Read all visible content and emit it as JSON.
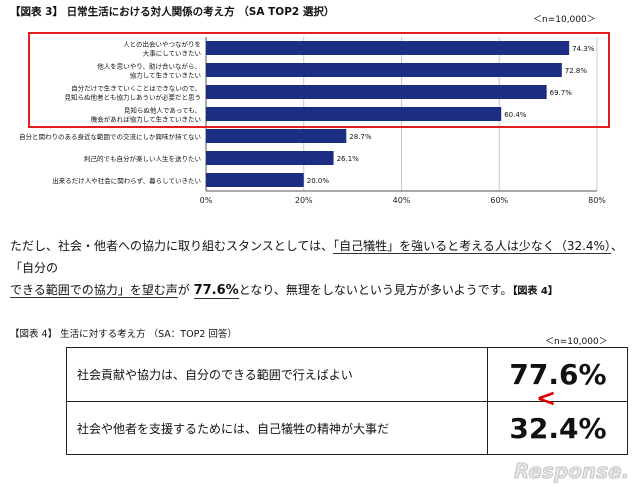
{
  "fig3": {
    "title": "【図表 3】 日常生活における対人関係の考え方 （SA TOP2 選択）",
    "n_label": "＜n=10,000＞"
  },
  "chart_data": {
    "type": "bar",
    "orientation": "horizontal",
    "categories": [
      [
        "人との出会いやつながりを",
        "大事にしていきたい"
      ],
      [
        "他人を思いやり、助け合いながら、",
        "協力して生きていきたい"
      ],
      [
        "自分だけで生きていくことはできないので、",
        "見知らぬ他者とも協力しあういが必要だと思う"
      ],
      [
        "見知らぬ他人であっても、",
        "機会があれば協力して生きていきたい"
      ],
      [
        "自分と関わりのある身近な範囲での交流にしか興味が持てない"
      ],
      [
        "利己的でも自分が楽しい人生を送りたい"
      ],
      [
        "出来るだけ人や社会に関わらず、暮らしていきたい"
      ]
    ],
    "values": [
      74.3,
      72.8,
      69.7,
      60.4,
      28.7,
      26.1,
      20.0
    ],
    "value_labels": [
      "74.3%",
      "72.8%",
      "69.7%",
      "60.4%",
      "28.7%",
      "26.1%",
      "20.0%"
    ],
    "xlim": [
      0,
      80
    ],
    "xticks": [
      "0%",
      "20%",
      "40%",
      "60%",
      "80%"
    ],
    "tick_values": [
      0,
      20,
      40,
      60,
      80
    ],
    "highlighted_rows": [
      0,
      1,
      2,
      3
    ],
    "grid": true,
    "bar_color": "#1c2d84",
    "highlight_color": "#e0201e"
  },
  "paragraph": {
    "line1_pre": "ただし、社会・他者への協力に取り組むスタンスとしては、",
    "line1_u1": "「自己犠牲」を強いると考える人は少なく（32.4%）",
    "line1_post": "、「自分の",
    "line2_u": "できる範囲での協力」を望む声",
    "line2_mid": "が ",
    "line2_big": "77.6%",
    "line2_post": "となり、無理をしないという見方が多いようです。",
    "line2_ref": "【図表 4】"
  },
  "fig4": {
    "title": "【図表 4】 生活に対する考え方 （SA：TOP2 回答）",
    "n_label": "＜n=10,000＞",
    "rows": [
      {
        "label": "社会貢献や協力は、自分のできる範囲で行えばよい",
        "value": "77.6%"
      },
      {
        "label": "社会や他者を支援するためには、自己犠牲の精神が大事だ",
        "value": "32.4%"
      }
    ],
    "comparison": "<"
  },
  "watermark": {
    "text": "Response."
  }
}
